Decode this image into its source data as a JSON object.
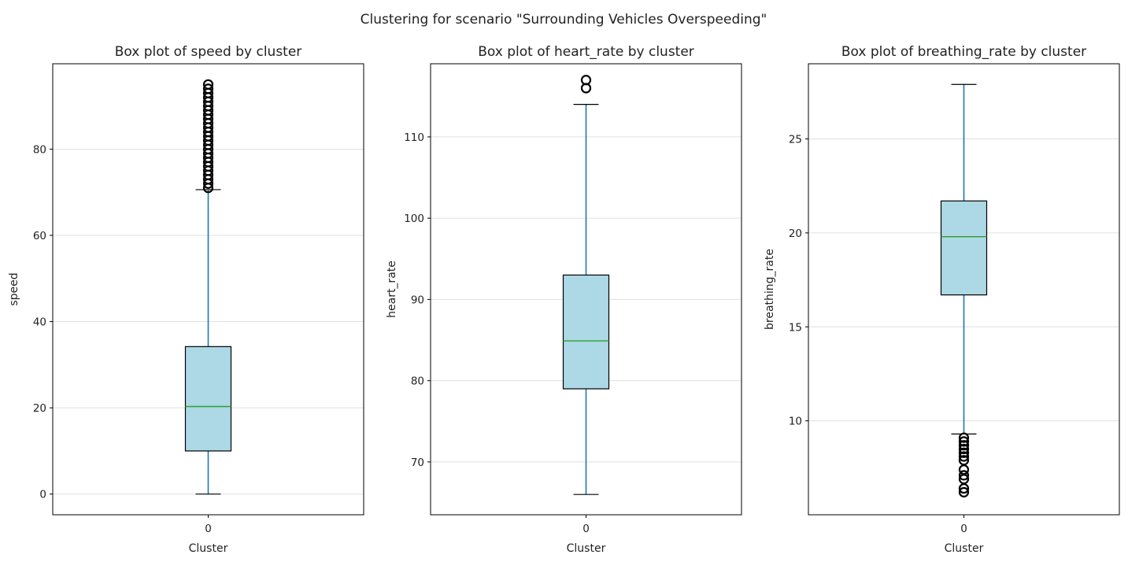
{
  "figure_title": "Clustering for scenario \"Surrounding Vehicles Overspeeding\"",
  "colors": {
    "box_fill": "#add8e6",
    "box_edge": "#000000",
    "whisker": "#1f77b4",
    "median": "#2ca02c",
    "grid": "#e0e0e0",
    "outlier": "#000000"
  },
  "chart_data": [
    {
      "type": "box",
      "title": "Box plot of speed by cluster",
      "xlabel": "Cluster",
      "ylabel": "speed",
      "categories": [
        "0"
      ],
      "ylim": [
        -4.8,
        99.8
      ],
      "yticks": [
        0,
        20,
        40,
        60,
        80
      ],
      "grid": true,
      "boxes": [
        {
          "category": "0",
          "whisker_low": 0,
          "q1": 10,
          "median": 20.3,
          "q3": 34.2,
          "whisker_high": 70.6,
          "outliers": [
            71,
            72,
            73,
            74,
            75,
            76,
            77,
            78,
            79,
            80,
            81,
            82,
            83,
            84,
            85,
            86,
            87,
            88,
            89,
            90,
            91,
            92,
            93,
            94,
            95
          ]
        }
      ]
    },
    {
      "type": "box",
      "title": "Box plot of heart_rate by cluster",
      "xlabel": "Cluster",
      "ylabel": "heart_rate",
      "categories": [
        "0"
      ],
      "ylim": [
        63.5,
        119
      ],
      "yticks": [
        70,
        80,
        90,
        100,
        110
      ],
      "grid": true,
      "boxes": [
        {
          "category": "0",
          "whisker_low": 66,
          "q1": 79,
          "median": 84.9,
          "q3": 93,
          "whisker_high": 114,
          "outliers": [
            116,
            117
          ]
        }
      ]
    },
    {
      "type": "box",
      "title": "Box plot of breathing_rate by cluster",
      "xlabel": "Cluster",
      "ylabel": "breathing_rate",
      "categories": [
        "0"
      ],
      "ylim": [
        5.0,
        29.0
      ],
      "yticks": [
        10,
        15,
        20,
        25
      ],
      "grid": true,
      "boxes": [
        {
          "category": "0",
          "whisker_low": 9.3,
          "q1": 16.7,
          "median": 19.8,
          "q3": 21.7,
          "whisker_high": 27.9,
          "outliers": [
            9.1,
            8.9,
            8.7,
            8.5,
            8.3,
            8.1,
            7.9,
            7.4,
            7.1,
            6.9,
            6.4,
            6.2
          ]
        }
      ]
    }
  ]
}
